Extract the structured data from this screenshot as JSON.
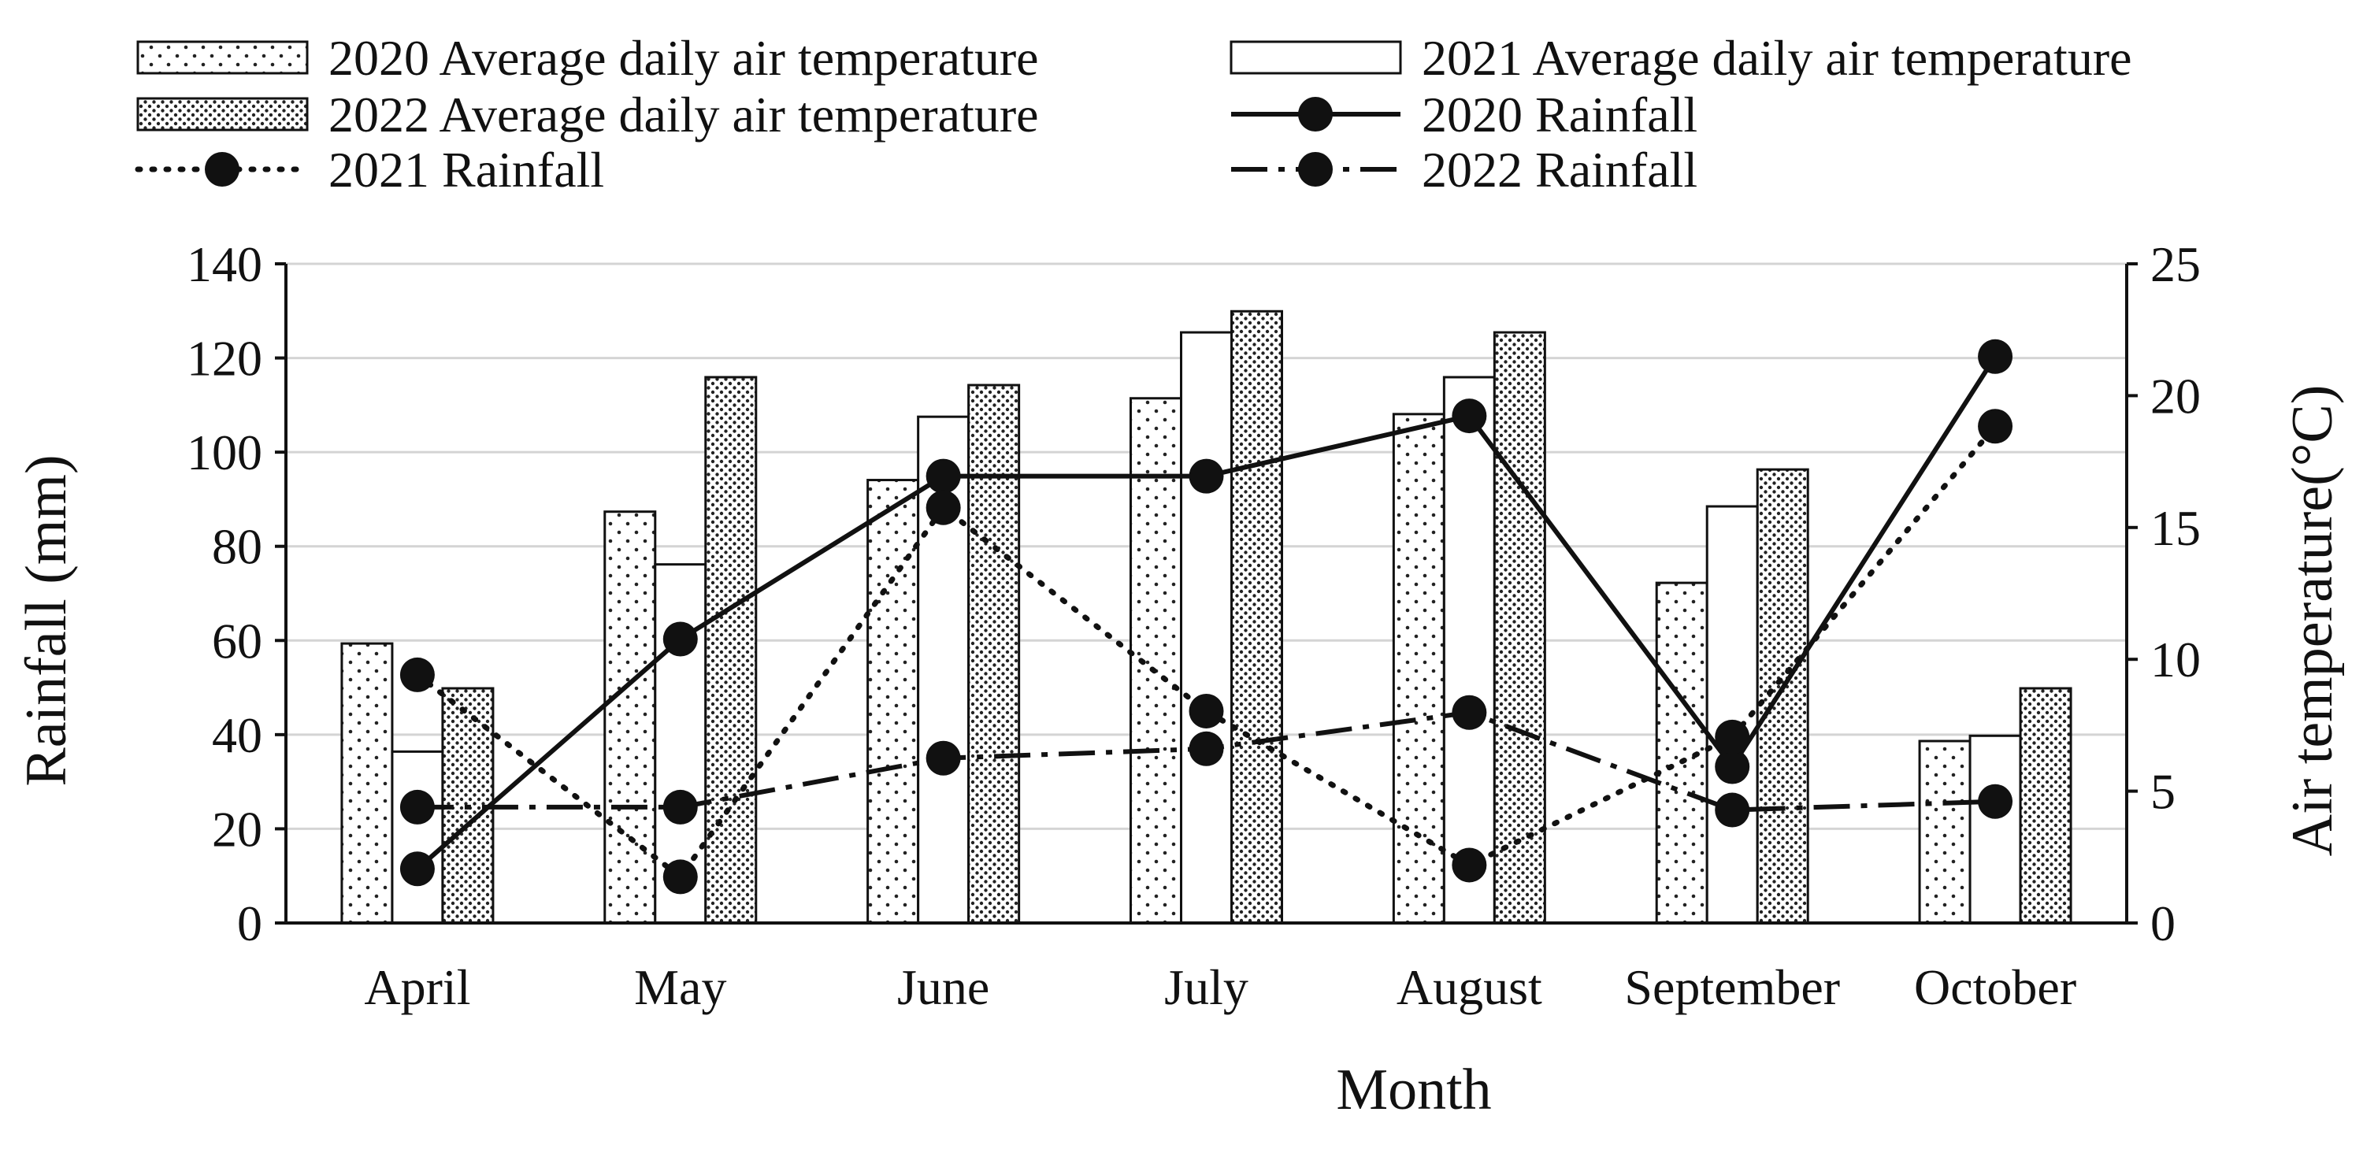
{
  "chart_data": {
    "type": "bar+line",
    "xlabel": "Month",
    "ylabel_left": "Rainfall (mm)",
    "ylabel_right": "Air temperature(°C)",
    "categories": [
      "April",
      "May",
      "June",
      "July",
      "August",
      "September",
      "October"
    ],
    "y_left": {
      "min": 0,
      "max": 140,
      "ticks": [
        0,
        20,
        40,
        60,
        80,
        100,
        120,
        140
      ]
    },
    "y_right": {
      "min": 0,
      "max": 25,
      "ticks": [
        0,
        5,
        10,
        15,
        20,
        25
      ]
    },
    "grid": true,
    "legend_position": "top",
    "bar_series": [
      {
        "name": "2020 Average daily air temperature",
        "pattern": "sparse-dots",
        "axis": "right",
        "values": [
          10.6,
          15.6,
          16.8,
          19.9,
          19.3,
          12.9,
          6.9
        ]
      },
      {
        "name": "2021 Average daily air temperature",
        "pattern": "plain",
        "axis": "right",
        "values": [
          6.5,
          13.6,
          19.2,
          22.4,
          20.7,
          15.8,
          7.1
        ]
      },
      {
        "name": "2022 Average daily air temperature",
        "pattern": "dense-dots",
        "axis": "right",
        "values": [
          8.9,
          20.7,
          20.4,
          23.2,
          22.4,
          17.2,
          8.9
        ]
      }
    ],
    "line_series": [
      {
        "name": "2020 Rainfall",
        "style": "solid",
        "axis": "left",
        "values": [
          11.5,
          60.3,
          94.9,
          94.9,
          107.7,
          33.2,
          120.3
        ]
      },
      {
        "name": "2021 Rainfall",
        "style": "dotted",
        "axis": "left",
        "values": [
          52.7,
          9.8,
          88.2,
          45.0,
          12.3,
          39.5,
          105.5
        ]
      },
      {
        "name": "2022 Rainfall",
        "style": "dashdot",
        "axis": "left",
        "values": [
          24.6,
          24.6,
          35.0,
          37.0,
          44.7,
          24.0,
          25.8
        ]
      }
    ]
  }
}
